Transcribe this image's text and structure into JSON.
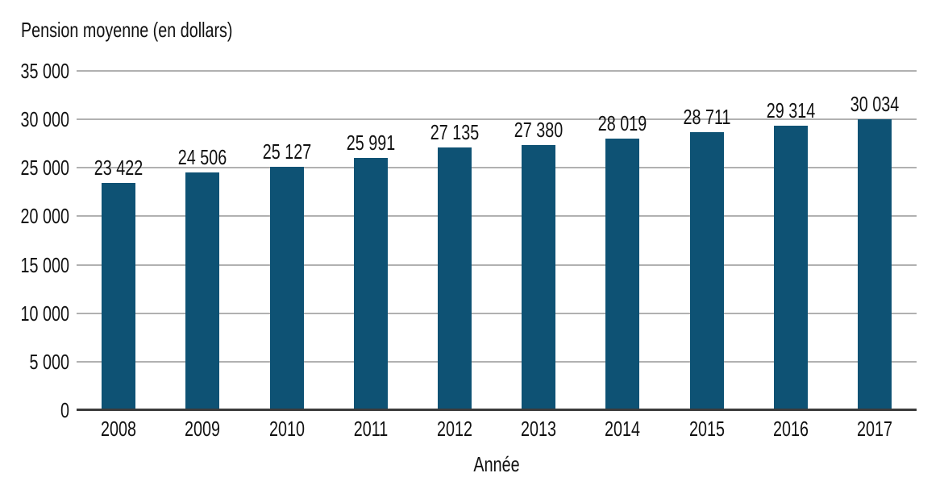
{
  "chart_data": {
    "type": "bar",
    "title": "Pension moyenne (en dollars)",
    "xlabel": "Année",
    "ylabel": "Pension moyenne (en dollars)",
    "categories": [
      "2008",
      "2009",
      "2010",
      "2011",
      "2012",
      "2013",
      "2014",
      "2015",
      "2016",
      "2017"
    ],
    "values": [
      23422,
      24506,
      25127,
      25991,
      27135,
      27380,
      28019,
      28711,
      29314,
      30034
    ],
    "value_labels": [
      "23 422",
      "24 506",
      "25 127",
      "25 991",
      "27 135",
      "27 380",
      "28 019",
      "28 711",
      "29 314",
      "30 034"
    ],
    "ylim": [
      0,
      35000
    ],
    "yticks": [
      0,
      5000,
      10000,
      15000,
      20000,
      25000,
      30000,
      35000
    ],
    "ytick_labels": [
      "0",
      "5 000",
      "10 000",
      "15 000",
      "20 000",
      "25 000",
      "30 000",
      "35 000"
    ],
    "grid": true,
    "legend": null,
    "colors": {
      "bar": "#0e5274",
      "gridline": "#b1b1b1",
      "axis_line": "#3b3b3b",
      "text": "#111111",
      "background": "#ffffff"
    }
  }
}
